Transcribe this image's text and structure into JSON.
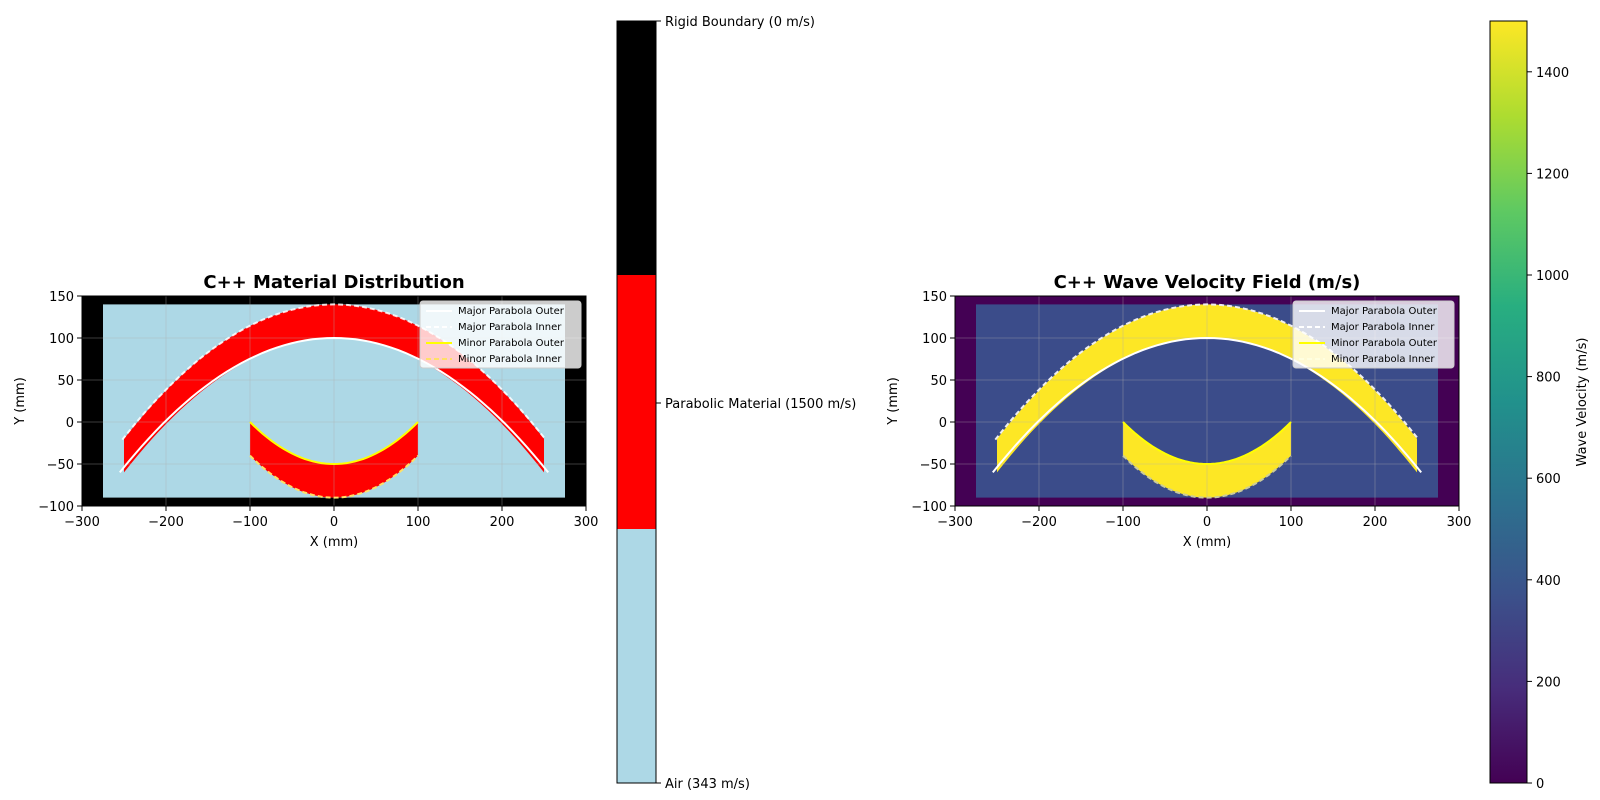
{
  "colors": {
    "air": "#add8e6",
    "material": "#ff0000",
    "rigid": "#000000",
    "velocity_air": "#3b4c8a",
    "velocity_material": "#fde725",
    "velocity_rigid": "#440154",
    "major_outer_line": "#ffffff",
    "minor_outer_line": "#ffff00",
    "minor_inner_line": "#ffe066"
  },
  "chart_data": [
    {
      "type": "heatmap",
      "title": "C++ Material Distribution",
      "xlabel": "X (mm)",
      "ylabel": "Y (mm)",
      "xlim": [
        -300,
        300
      ],
      "ylim": [
        -100,
        150
      ],
      "xticks": [
        -300,
        -200,
        -100,
        0,
        100,
        200,
        300
      ],
      "yticks": [
        -100,
        -50,
        0,
        50,
        100,
        150
      ],
      "xticklabels": [
        "−300",
        "−200",
        "−100",
        "0",
        "100",
        "200",
        "300"
      ],
      "yticklabels": [
        "−100",
        "−50",
        "0",
        "50",
        "100",
        "150"
      ],
      "grid": true,
      "domain": {
        "x": [
          -275,
          275
        ],
        "y": [
          -90,
          140
        ]
      },
      "regions": {
        "major_parabola": {
          "x_range": [
            -250,
            250
          ],
          "outer": {
            "vertex": 140,
            "edge": -20
          },
          "inner": {
            "vertex": 100,
            "edge": -60
          }
        },
        "minor_parabola": {
          "x_range": [
            -100,
            100
          ],
          "inner": {
            "vertex": -50,
            "edge": 0
          },
          "outer": {
            "vertex": -90,
            "edge": -40
          }
        }
      },
      "legend": {
        "placement": "top-right",
        "entries": [
          "Major Parabola Outer",
          "Major Parabola Inner",
          "Minor Parabola Outer",
          "Minor Parabola Inner"
        ]
      },
      "colorbar": {
        "type": "categorical",
        "categories": [
          "Air (343 m/s)",
          "Parabolic Material (1500 m/s)",
          "Rigid Boundary (0 m/s)"
        ]
      }
    },
    {
      "type": "heatmap",
      "title": "C++ Wave Velocity Field (m/s)",
      "xlabel": "X (mm)",
      "ylabel": "Y (mm)",
      "xlim": [
        -300,
        300
      ],
      "ylim": [
        -100,
        150
      ],
      "xticks": [
        -300,
        -200,
        -100,
        0,
        100,
        200,
        300
      ],
      "yticks": [
        -100,
        -50,
        0,
        50,
        100,
        150
      ],
      "xticklabels": [
        "−300",
        "−200",
        "−100",
        "0",
        "100",
        "200",
        "300"
      ],
      "yticklabels": [
        "−100",
        "−50",
        "0",
        "50",
        "100",
        "150"
      ],
      "grid": true,
      "values": {
        "air": 343,
        "material": 1500,
        "rigid": 0
      },
      "legend": {
        "placement": "top-right",
        "entries": [
          "Major Parabola Outer",
          "Major Parabola Inner",
          "Minor Parabola Outer",
          "Minor Parabola Inner"
        ]
      },
      "colorbar": {
        "type": "continuous",
        "label": "Wave Velocity (m/s)",
        "range": [
          0,
          1500
        ],
        "ticks": [
          0,
          200,
          400,
          600,
          800,
          1000,
          1200,
          1400
        ],
        "ticklabels": [
          "0",
          "200",
          "400",
          "600",
          "800",
          "1000",
          "1200",
          "1400"
        ],
        "colormap": "viridis"
      }
    }
  ]
}
